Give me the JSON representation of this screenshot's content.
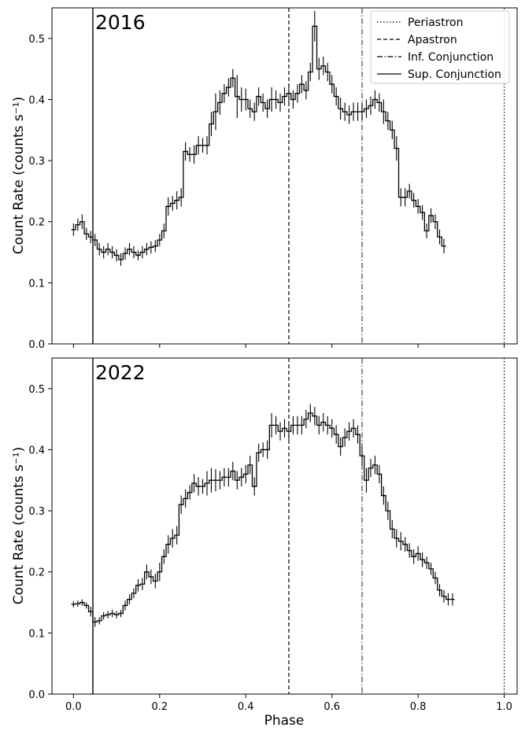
{
  "figure": {
    "xlabel": "Phase",
    "ylabel": "Count Rate (counts s⁻¹)",
    "x_ticks": [
      "0.0",
      "0.2",
      "0.4",
      "0.6",
      "0.8",
      "1.0"
    ],
    "y_ticks": [
      "0.0",
      "0.1",
      "0.2",
      "0.3",
      "0.4",
      "0.5"
    ]
  },
  "legend": [
    {
      "label": "Periastron",
      "style": "dotted"
    },
    {
      "label": "Apastron",
      "style": "dashed"
    },
    {
      "label": "Inf. Conjunction",
      "style": "dashdot"
    },
    {
      "label": "Sup. Conjunction",
      "style": "solid"
    }
  ],
  "chart_data": [
    {
      "type": "line",
      "title": "2016",
      "xlabel": "",
      "ylabel": "Count Rate (counts s⁻¹)",
      "xlim": [
        -0.05,
        1.03
      ],
      "ylim": [
        0,
        0.55
      ],
      "bin_width": 0.01,
      "x_start": 0.0,
      "values": [
        0.187,
        0.195,
        0.2,
        0.18,
        0.175,
        0.17,
        0.155,
        0.15,
        0.155,
        0.15,
        0.145,
        0.138,
        0.148,
        0.155,
        0.15,
        0.145,
        0.15,
        0.155,
        0.158,
        0.16,
        0.17,
        0.185,
        0.225,
        0.23,
        0.235,
        0.24,
        0.315,
        0.31,
        0.31,
        0.325,
        0.325,
        0.325,
        0.36,
        0.38,
        0.395,
        0.41,
        0.42,
        0.435,
        0.405,
        0.4,
        0.4,
        0.385,
        0.38,
        0.405,
        0.395,
        0.385,
        0.4,
        0.4,
        0.395,
        0.405,
        0.41,
        0.4,
        0.41,
        0.425,
        0.415,
        0.445,
        0.52,
        0.45,
        0.455,
        0.445,
        0.425,
        0.405,
        0.385,
        0.38,
        0.375,
        0.38,
        0.38,
        0.38,
        0.385,
        0.39,
        0.4,
        0.395,
        0.38,
        0.365,
        0.35,
        0.32,
        0.24,
        0.24,
        0.25,
        0.235,
        0.225,
        0.215,
        0.185,
        0.21,
        0.2,
        0.175,
        0.16
      ],
      "errors": [
        0.01,
        0.01,
        0.012,
        0.01,
        0.01,
        0.01,
        0.01,
        0.01,
        0.01,
        0.01,
        0.01,
        0.01,
        0.01,
        0.01,
        0.01,
        0.008,
        0.01,
        0.01,
        0.01,
        0.01,
        0.01,
        0.012,
        0.015,
        0.012,
        0.015,
        0.015,
        0.015,
        0.012,
        0.015,
        0.015,
        0.012,
        0.015,
        0.02,
        0.03,
        0.02,
        0.015,
        0.015,
        0.015,
        0.035,
        0.02,
        0.018,
        0.015,
        0.015,
        0.015,
        0.015,
        0.015,
        0.02,
        0.015,
        0.015,
        0.015,
        0.015,
        0.015,
        0.015,
        0.015,
        0.015,
        0.015,
        0.025,
        0.018,
        0.015,
        0.015,
        0.015,
        0.015,
        0.018,
        0.015,
        0.015,
        0.015,
        0.015,
        0.015,
        0.015,
        0.015,
        0.015,
        0.015,
        0.02,
        0.015,
        0.015,
        0.02,
        0.015,
        0.015,
        0.012,
        0.012,
        0.012,
        0.012,
        0.012,
        0.012,
        0.012,
        0.012,
        0.012
      ],
      "reference_lines": [
        {
          "name": "Sup. Conjunction",
          "x": 0.045,
          "style": "solid"
        },
        {
          "name": "Apastron",
          "x": 0.5,
          "style": "dashed"
        },
        {
          "name": "Inf. Conjunction",
          "x": 0.67,
          "style": "dashdot"
        },
        {
          "name": "Periastron",
          "x": 1.0,
          "style": "dotted"
        }
      ]
    },
    {
      "type": "line",
      "title": "2022",
      "xlabel": "Phase",
      "ylabel": "Count Rate (counts s⁻¹)",
      "xlim": [
        -0.05,
        1.03
      ],
      "ylim": [
        0,
        0.55
      ],
      "bin_width": 0.01,
      "x_start": 0.0,
      "values": [
        0.147,
        0.148,
        0.15,
        0.145,
        0.135,
        0.118,
        0.12,
        0.128,
        0.13,
        0.132,
        0.13,
        0.132,
        0.145,
        0.155,
        0.165,
        0.178,
        0.18,
        0.2,
        0.192,
        0.185,
        0.2,
        0.225,
        0.245,
        0.255,
        0.26,
        0.31,
        0.32,
        0.33,
        0.345,
        0.34,
        0.34,
        0.345,
        0.35,
        0.35,
        0.35,
        0.355,
        0.355,
        0.365,
        0.35,
        0.355,
        0.36,
        0.375,
        0.34,
        0.395,
        0.4,
        0.4,
        0.44,
        0.44,
        0.43,
        0.435,
        0.43,
        0.44,
        0.44,
        0.44,
        0.45,
        0.46,
        0.455,
        0.44,
        0.445,
        0.44,
        0.435,
        0.425,
        0.405,
        0.42,
        0.43,
        0.435,
        0.425,
        0.39,
        0.35,
        0.37,
        0.375,
        0.36,
        0.325,
        0.3,
        0.27,
        0.255,
        0.25,
        0.245,
        0.235,
        0.225,
        0.23,
        0.22,
        0.215,
        0.205,
        0.19,
        0.17,
        0.16,
        0.155,
        0.155
      ],
      "errors": [
        0.005,
        0.005,
        0.005,
        0.005,
        0.008,
        0.008,
        0.006,
        0.006,
        0.006,
        0.006,
        0.006,
        0.006,
        0.008,
        0.008,
        0.008,
        0.01,
        0.01,
        0.012,
        0.012,
        0.012,
        0.015,
        0.012,
        0.015,
        0.015,
        0.015,
        0.015,
        0.015,
        0.012,
        0.015,
        0.015,
        0.012,
        0.02,
        0.02,
        0.018,
        0.015,
        0.015,
        0.015,
        0.015,
        0.015,
        0.015,
        0.015,
        0.015,
        0.015,
        0.015,
        0.012,
        0.015,
        0.02,
        0.015,
        0.015,
        0.015,
        0.015,
        0.015,
        0.015,
        0.015,
        0.015,
        0.015,
        0.015,
        0.015,
        0.015,
        0.015,
        0.015,
        0.015,
        0.015,
        0.015,
        0.015,
        0.015,
        0.015,
        0.015,
        0.02,
        0.015,
        0.015,
        0.015,
        0.015,
        0.015,
        0.015,
        0.015,
        0.015,
        0.012,
        0.012,
        0.012,
        0.012,
        0.012,
        0.01,
        0.01,
        0.01,
        0.01,
        0.01,
        0.01,
        0.01
      ]
    }
  ]
}
